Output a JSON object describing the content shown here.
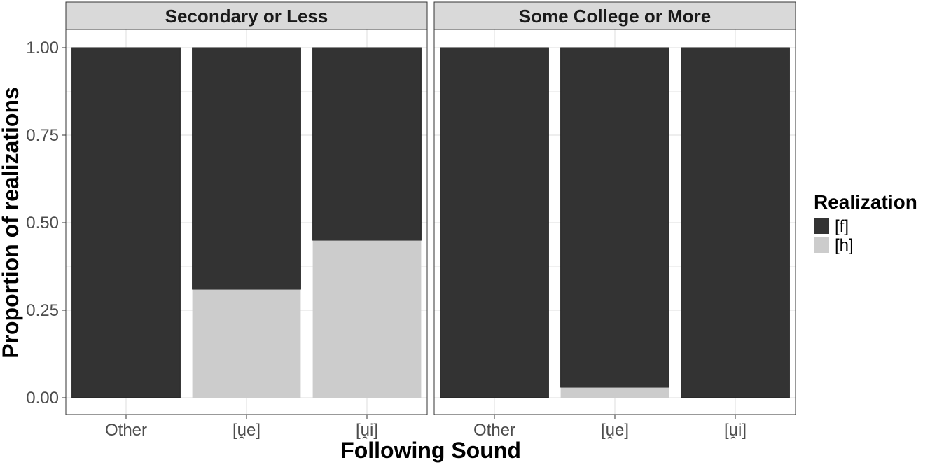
{
  "chart_data": {
    "type": "bar",
    "stacked": true,
    "facets": [
      "Secondary or Less",
      "Some College or More"
    ],
    "categories": [
      "Other",
      "[u̯e]",
      "[u̯i]"
    ],
    "series": [
      {
        "name": "[f]",
        "color": "#333333",
        "values": [
          [
            1.0,
            0.69,
            0.55
          ],
          [
            1.0,
            0.97,
            1.0
          ]
        ]
      },
      {
        "name": "[h]",
        "color": "#cccccc",
        "values": [
          [
            0.0,
            0.31,
            0.45
          ],
          [
            0.0,
            0.03,
            0.0
          ]
        ]
      }
    ],
    "xlabel": "Following Sound",
    "ylabel": "Proportion of realizations",
    "ylim": [
      0,
      1
    ],
    "yticks": [
      "0.00",
      "0.25",
      "0.50",
      "0.75",
      "1.00"
    ],
    "yticks_values": [
      0,
      0.25,
      0.5,
      0.75,
      1
    ],
    "legend_title": "Realization",
    "legend_position": "right",
    "grid": true
  }
}
